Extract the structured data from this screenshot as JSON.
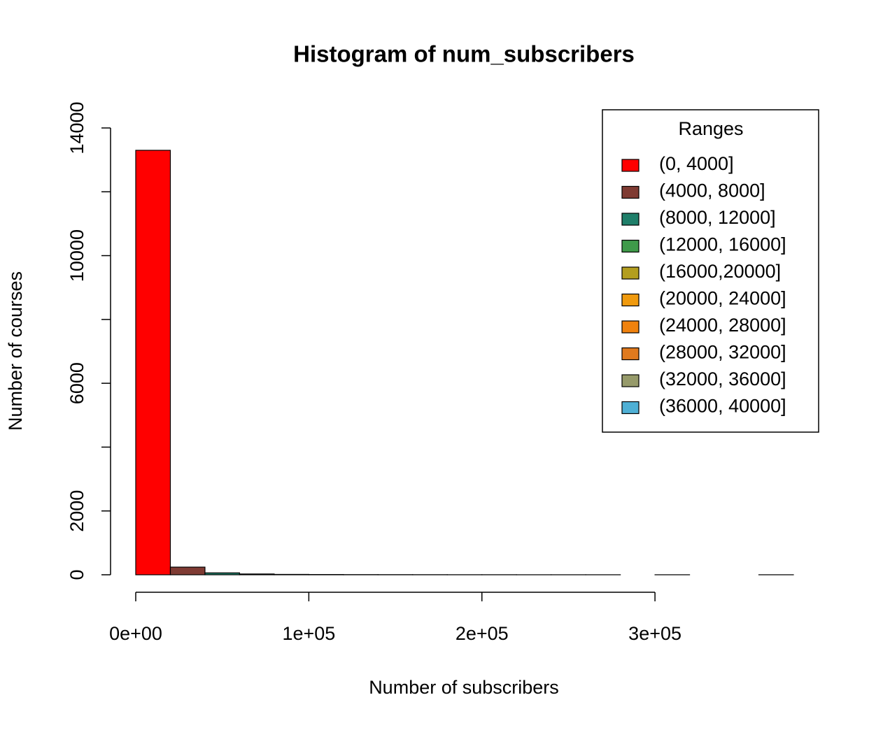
{
  "chart_data": {
    "type": "histogram",
    "title": "Histogram of num_subscribers",
    "x_label": "Number of subscribers",
    "y_label": "Number of courses",
    "bins": [
      0,
      20000,
      40000,
      60000,
      80000,
      100000,
      120000,
      140000,
      160000,
      180000,
      200000,
      220000,
      240000,
      260000,
      280000,
      300000,
      320000,
      340000,
      360000,
      380000
    ],
    "counts": [
      13300,
      240,
      60,
      25,
      12,
      8,
      5,
      4,
      3,
      2,
      2,
      1,
      1,
      1,
      0,
      1,
      0,
      0,
      1
    ],
    "xlim": [
      0,
      380000
    ],
    "xticks": [
      {
        "value": 0,
        "label": "0e+00"
      },
      {
        "value": 100000,
        "label": "1e+05"
      },
      {
        "value": 200000,
        "label": "2e+05"
      },
      {
        "value": 300000,
        "label": "3e+05"
      }
    ],
    "ylim": [
      0,
      14000
    ],
    "yticks": [
      0,
      2000,
      {
        "value": 4000,
        "label": null
      },
      6000,
      {
        "value": 8000,
        "label": null
      },
      10000,
      {
        "value": 12000,
        "label": null
      },
      14000
    ],
    "legend": {
      "title": "Ranges",
      "position": "top-right",
      "entries": [
        {
          "name": "(0, 4000]",
          "color": "#ff0000"
        },
        {
          "name": "(4000, 8000]",
          "color": "#7f3b33"
        },
        {
          "name": "(8000, 12000]",
          "color": "#1f7f6a"
        },
        {
          "name": "(12000, 16000]",
          "color": "#3f9a4a"
        },
        {
          "name": "(16000,20000]",
          "color": "#b39e1f"
        },
        {
          "name": "(20000, 24000]",
          "color": "#f09a0e"
        },
        {
          "name": "(24000, 28000]",
          "color": "#f0820e"
        },
        {
          "name": "(28000, 32000]",
          "color": "#e07a1e"
        },
        {
          "name": "(32000, 36000]",
          "color": "#969a6a"
        },
        {
          "name": "(36000, 40000]",
          "color": "#4fb0d5"
        }
      ]
    }
  }
}
